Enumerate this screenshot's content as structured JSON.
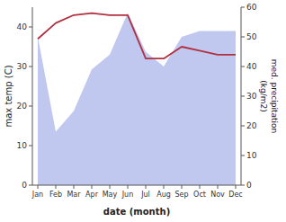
{
  "chart_data": {
    "type": "line",
    "categories": [
      "Jan",
      "Feb",
      "Mar",
      "Apr",
      "May",
      "Jun",
      "Jul",
      "Aug",
      "Sep",
      "Oct",
      "Nov",
      "Dec"
    ],
    "xlabel": "date (month)",
    "ylabel": "max temp (C)",
    "y2label": "med. precipitation\n(kg/m2)",
    "series": [
      {
        "type": "area",
        "axis": "y2",
        "color": "#c0c8f0",
        "values": [
          50,
          18,
          25,
          39,
          44,
          58,
          45,
          40,
          50,
          52,
          52,
          52
        ]
      },
      {
        "type": "line",
        "color": "#b03040",
        "values": [
          37,
          41,
          43,
          43.5,
          43,
          43,
          32,
          32,
          35,
          34,
          33,
          33
        ]
      }
    ],
    "ylim": [
      0,
      45
    ],
    "yticks": [
      0,
      10,
      20,
      30,
      40
    ],
    "y2lim": [
      0,
      60
    ],
    "y2ticks": [
      0,
      10,
      20,
      30,
      40,
      50,
      60
    ]
  }
}
